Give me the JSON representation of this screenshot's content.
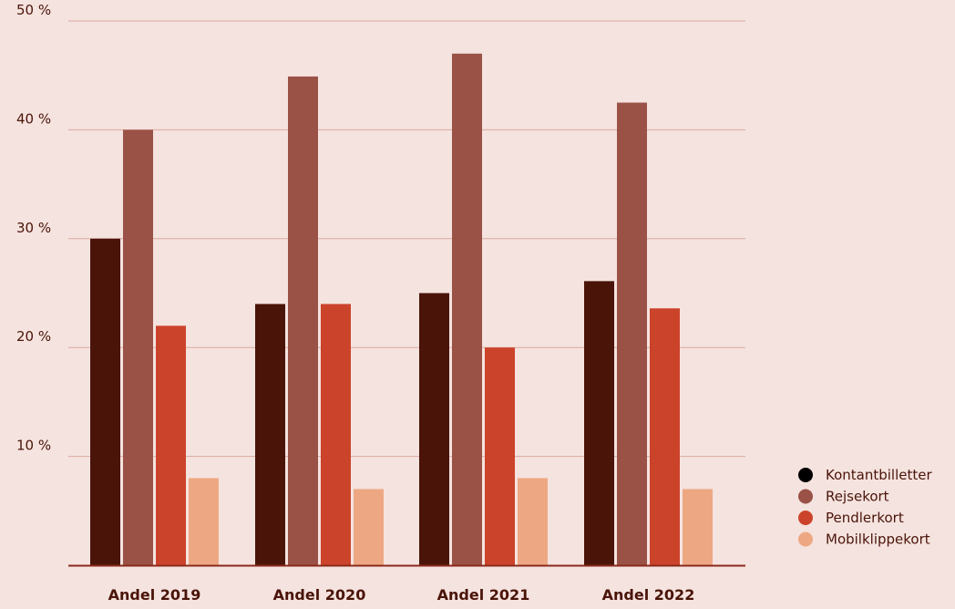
{
  "chart_data": {
    "type": "bar",
    "categories": [
      "Andel 2019",
      "Andel 2020",
      "Andel 2021",
      "Andel 2022"
    ],
    "series": [
      {
        "name": "Kontantbilletter",
        "values": [
          30,
          24,
          25,
          26.1
        ],
        "color": "#4a1409"
      },
      {
        "name": "Rejsekort",
        "values": [
          40,
          44.9,
          47,
          42.5
        ],
        "color": "#9a5247"
      },
      {
        "name": "Pendlerkort",
        "values": [
          22,
          24,
          20,
          23.6
        ],
        "color": "#cc432b"
      },
      {
        "name": "Mobilklippekort",
        "values": [
          8,
          7,
          8,
          7
        ],
        "color": "#eda883"
      }
    ],
    "y_ticks": [
      10,
      20,
      30,
      40,
      50
    ],
    "y_tick_labels": [
      "10 %",
      "20 %",
      "30 %",
      "40 %",
      "50 %"
    ],
    "ylim": [
      0,
      50
    ],
    "grid": true,
    "legend_position": "bottom-right",
    "title": "",
    "xlabel": "",
    "ylabel": ""
  },
  "colors": {
    "background": "#f5e3df",
    "gridline": "#d9a9a0",
    "baseline": "#8a2a1a",
    "text": "#4a1409"
  }
}
